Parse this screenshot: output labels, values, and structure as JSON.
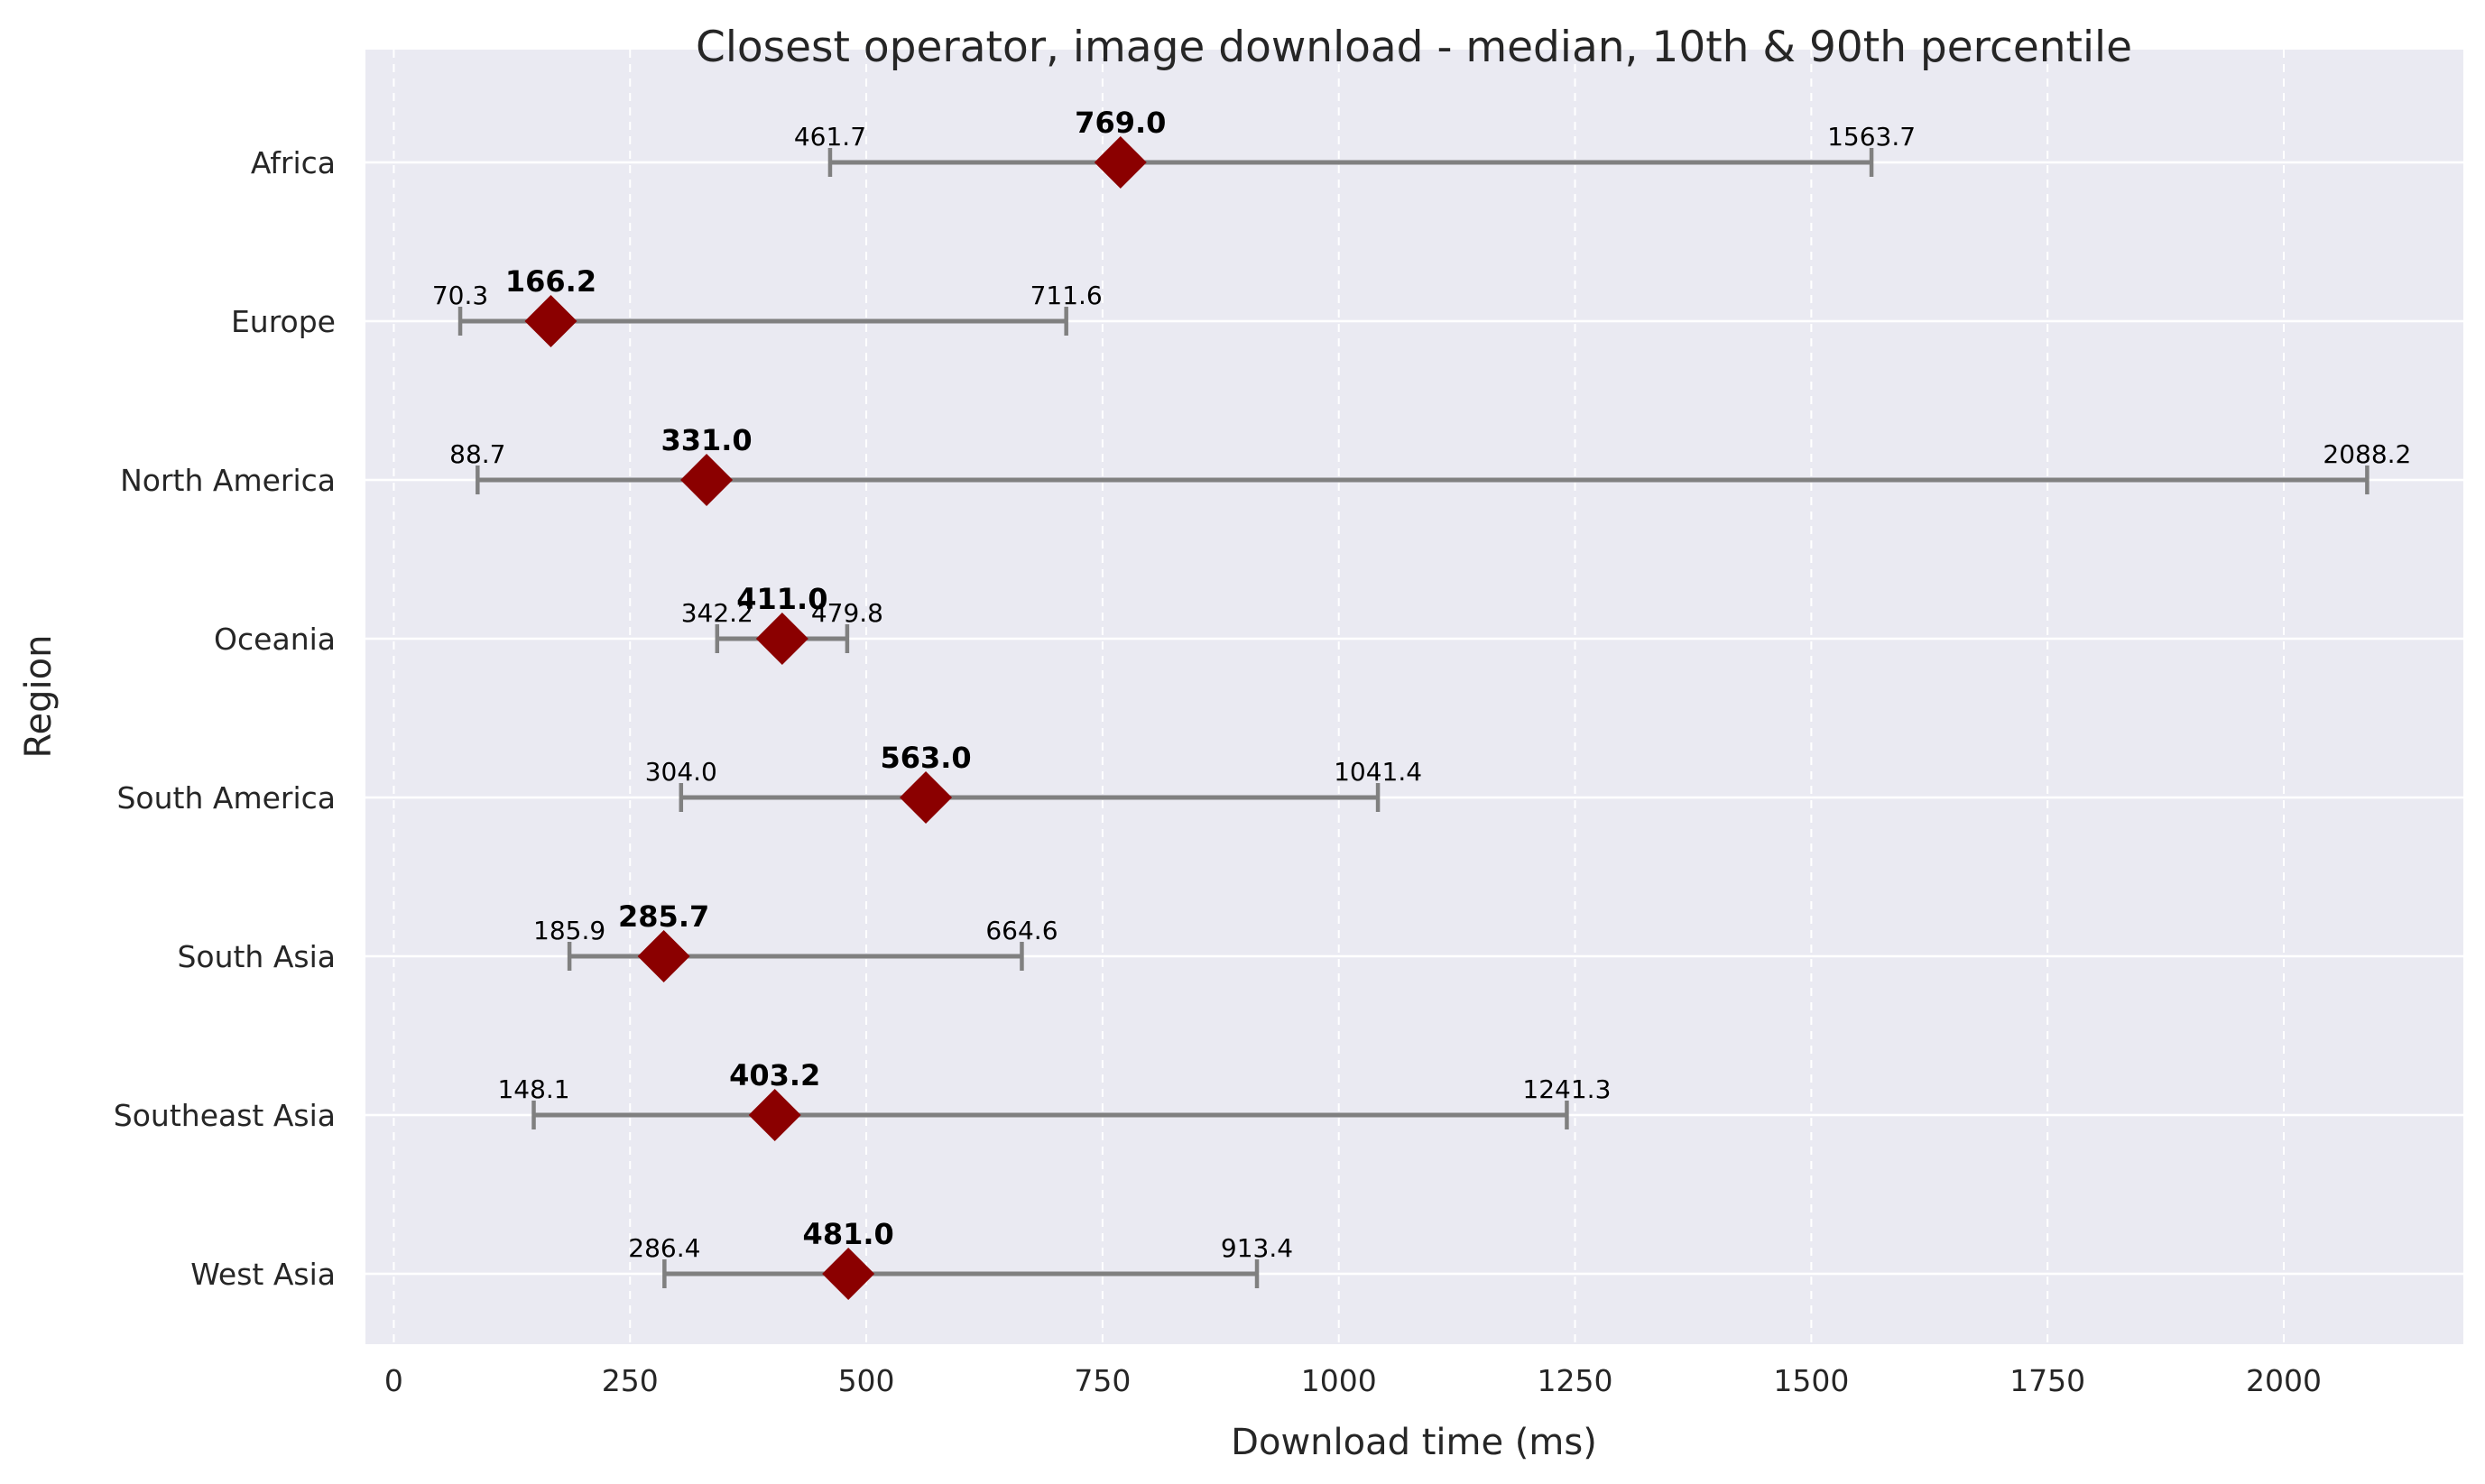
{
  "chart_data": {
    "type": "scatter",
    "title": "Closest operator, image download - median, 10th & 90th percentile",
    "xlabel": "Download time (ms)",
    "ylabel": "Region",
    "xlim": [
      -30,
      2190
    ],
    "xticks": [
      0,
      250,
      500,
      750,
      1000,
      1250,
      1500,
      1750,
      2000
    ],
    "grid": true,
    "colors": {
      "background": "#eaeaf2",
      "range": "#808080",
      "median": "#8b0000",
      "grid": "#ffffff"
    },
    "series": [
      {
        "region": "Africa",
        "p10": 461.7,
        "median": 769.0,
        "p90": 1563.7,
        "p10_label": "461.7",
        "median_label": "769.0",
        "p90_label": "1563.7"
      },
      {
        "region": "Europe",
        "p10": 70.3,
        "median": 166.2,
        "p90": 711.6,
        "p10_label": "70.3",
        "median_label": "166.2",
        "p90_label": "711.6"
      },
      {
        "region": "North America",
        "p10": 88.7,
        "median": 331.0,
        "p90": 2088.2,
        "p10_label": "88.7",
        "median_label": "331.0",
        "p90_label": "2088.2"
      },
      {
        "region": "Oceania",
        "p10": 342.2,
        "median": 411.0,
        "p90": 479.8,
        "p10_label": "342.2",
        "median_label": "411.0",
        "p90_label": "479.8"
      },
      {
        "region": "South America",
        "p10": 304.0,
        "median": 563.0,
        "p90": 1041.4,
        "p10_label": "304.0",
        "median_label": "563.0",
        "p90_label": "1041.4"
      },
      {
        "region": "South Asia",
        "p10": 185.9,
        "median": 285.7,
        "p90": 664.6,
        "p10_label": "185.9",
        "median_label": "285.7",
        "p90_label": "664.6"
      },
      {
        "region": "Southeast Asia",
        "p10": 148.1,
        "median": 403.2,
        "p90": 1241.3,
        "p10_label": "148.1",
        "median_label": "403.2",
        "p90_label": "1241.3"
      },
      {
        "region": "West Asia",
        "p10": 286.4,
        "median": 481.0,
        "p90": 913.4,
        "p10_label": "286.4",
        "median_label": "481.0",
        "p90_label": "913.4"
      }
    ]
  }
}
